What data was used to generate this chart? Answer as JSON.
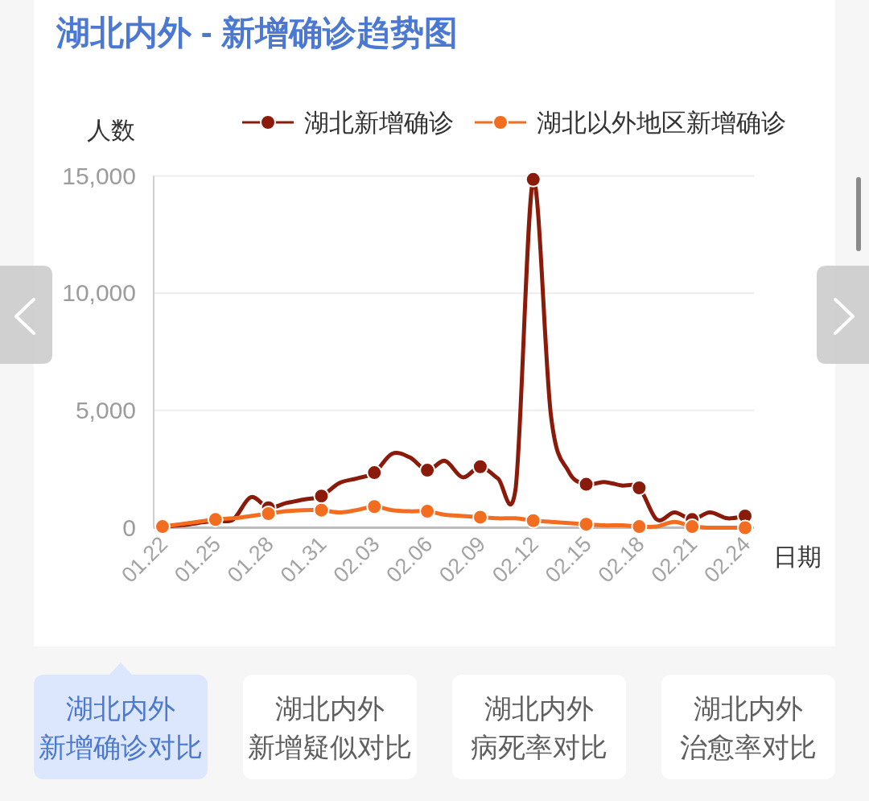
{
  "chart_data": [
    {
      "type": "line",
      "title": "湖北内外 - 新增确诊趋势图",
      "xlabel": "日期",
      "ylabel": "人数",
      "categories": [
        "01.22",
        null,
        null,
        "01.25",
        null,
        null,
        "01.28",
        null,
        null,
        "01.31",
        null,
        null,
        "02.03",
        null,
        null,
        "02.06",
        null,
        null,
        "02.09",
        null,
        null,
        "02.12",
        null,
        null,
        "02.15",
        null,
        null,
        "02.18",
        null,
        null,
        "02.21",
        null,
        null,
        "02.24"
      ],
      "series": [
        {
          "name": "湖北新增确诊",
          "color": "#8a1b0b",
          "values": [
            50,
            100,
            200,
            300,
            350,
            1300,
            850,
            1050,
            1200,
            1350,
            1900,
            2100,
            2350,
            3150,
            3000,
            2450,
            2850,
            2150,
            2600,
            2100,
            1650,
            14850,
            4800,
            2400,
            1850,
            1950,
            1800,
            1700,
            350,
            650,
            350,
            650,
            400,
            500
          ]
        },
        {
          "type": "scatter",
          "color": "#8a1b0b",
          "marker": "circle",
          "values": [
            null,
            null,
            null,
            null,
            null,
            null,
            850,
            null,
            null,
            1350,
            null,
            null,
            2350,
            null,
            null,
            2450,
            null,
            null,
            2600,
            null,
            null,
            14850,
            null,
            null,
            1850,
            null,
            null,
            1700,
            null,
            null,
            350,
            null,
            null,
            500
          ]
        },
        {
          "name": "湖北以外地区新增确诊",
          "color": "#f26d1f",
          "values": [
            50,
            150,
            250,
            350,
            400,
            500,
            600,
            700,
            750,
            750,
            650,
            750,
            900,
            750,
            700,
            700,
            550,
            500,
            450,
            400,
            400,
            300,
            250,
            200,
            150,
            100,
            100,
            50,
            50,
            250,
            50,
            0,
            0,
            0
          ]
        },
        {
          "type": "scatter",
          "color": "#f26d1f",
          "marker": "circle",
          "values": [
            50,
            null,
            null,
            350,
            null,
            null,
            600,
            null,
            null,
            750,
            null,
            null,
            900,
            null,
            null,
            700,
            null,
            null,
            450,
            null,
            null,
            300,
            null,
            null,
            150,
            null,
            null,
            50,
            null,
            null,
            50,
            null,
            null,
            0
          ]
        }
      ],
      "ylim": [
        0,
        15000
      ],
      "yticks": [
        0,
        {
          "value": 5000,
          "label": "5,000"
        },
        {
          "value": 10000,
          "label": "10,000"
        },
        {
          "value": 15000,
          "label": "15,000"
        }
      ],
      "grid": "y",
      "legend": "top",
      "line_style": "solid"
    },
    {
      "type": "other",
      "annotations": [
        "湖北内外",
        "新增确诊对比"
      ]
    },
    {
      "type": "other",
      "annotations": [
        "湖北内外",
        "新增疑似对比"
      ]
    },
    {
      "type": "other",
      "annotations": [
        "湖北内外",
        "病死率对比"
      ]
    },
    {
      "type": "other",
      "annotations": [
        "湖北内外",
        "治愈率对比"
      ]
    }
  ]
}
